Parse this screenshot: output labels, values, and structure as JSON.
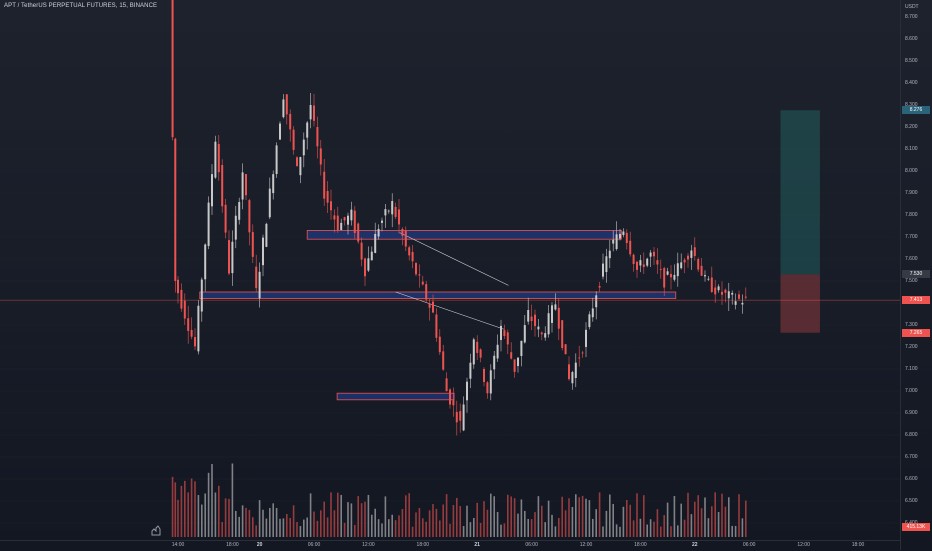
{
  "header": {
    "title": "APT / TetherUS PERPETUAL FUTURES, 15, BINANCE"
  },
  "colors": {
    "background": "#131722",
    "up": "#c8c8c8",
    "down": "#ef5350",
    "zone_fill_blue": "#2962ff",
    "zone_border_red": "#ef5350",
    "target_zone": "#26a69a",
    "stop_zone": "#ef5350",
    "current_price_line": "#ef5350",
    "grid": "#1e222d"
  },
  "price_axis": {
    "currency": "USDT",
    "ticks": [
      "8.700",
      "8.600",
      "8.500",
      "8.400",
      "8.300",
      "8.200",
      "8.100",
      "8.000",
      "7.900",
      "7.800",
      "7.700",
      "7.600",
      "7.500",
      "7.400",
      "7.300",
      "7.200",
      "7.100",
      "7.000",
      "6.900",
      "6.800",
      "6.700",
      "6.600",
      "6.500",
      "6.400"
    ],
    "labels": [
      {
        "name": "target-price-label",
        "text": "8.276",
        "price": 8.276,
        "color": "#2a6478"
      },
      {
        "name": "entry-price-label",
        "text": "7.530",
        "price": 7.53,
        "color": "#363a45"
      },
      {
        "name": "current-price-label",
        "text": "7.413",
        "price": 7.413,
        "color": "#ef5350"
      },
      {
        "name": "stop-price-label",
        "text": "7.265",
        "price": 7.265,
        "color": "#ef5350"
      },
      {
        "name": "volume-label",
        "text": "415.13K",
        "price": 6.38,
        "color": "#ef5350"
      }
    ]
  },
  "time_axis": {
    "ticks": [
      {
        "label": "14:00",
        "bold": false
      },
      {
        "label": "18:00",
        "bold": false
      },
      {
        "label": "20",
        "bold": true
      },
      {
        "label": "06:00",
        "bold": false
      },
      {
        "label": "12:00",
        "bold": false
      },
      {
        "label": "18:00",
        "bold": false
      },
      {
        "label": "21",
        "bold": true
      },
      {
        "label": "06:00",
        "bold": false
      },
      {
        "label": "12:00",
        "bold": false
      },
      {
        "label": "18:00",
        "bold": false
      },
      {
        "label": "22",
        "bold": true
      },
      {
        "label": "06:00",
        "bold": false
      },
      {
        "label": "12:00",
        "bold": false
      },
      {
        "label": "18:00",
        "bold": false
      }
    ]
  },
  "chart_data": {
    "type": "candlestick",
    "symbol": "APT / TetherUS PERPETUAL FUTURES",
    "interval": "15",
    "exchange": "BINANCE",
    "ylim": [
      6.35,
      8.75
    ],
    "current_price": 7.413,
    "key_points": [
      {
        "time": "13:30",
        "price": 8.8
      },
      {
        "time": "20 02:00",
        "price": 8.33
      },
      {
        "time": "20 08:00",
        "price": 7.8
      },
      {
        "time": "20 10:00",
        "price": 6.85
      },
      {
        "time": "20 15:00",
        "price": 7.74
      },
      {
        "time": "20 21:00",
        "price": 7.41
      }
    ],
    "zones": [
      {
        "name": "resistance-zone",
        "price_top": 7.73,
        "price_bottom": 7.69
      },
      {
        "name": "support-zone",
        "price_top": 7.45,
        "price_bottom": 7.42
      },
      {
        "name": "demand-zone",
        "price_top": 6.99,
        "price_bottom": 6.96
      }
    ],
    "position": {
      "entry": 7.53,
      "target": 8.276,
      "stop": 7.265
    }
  }
}
